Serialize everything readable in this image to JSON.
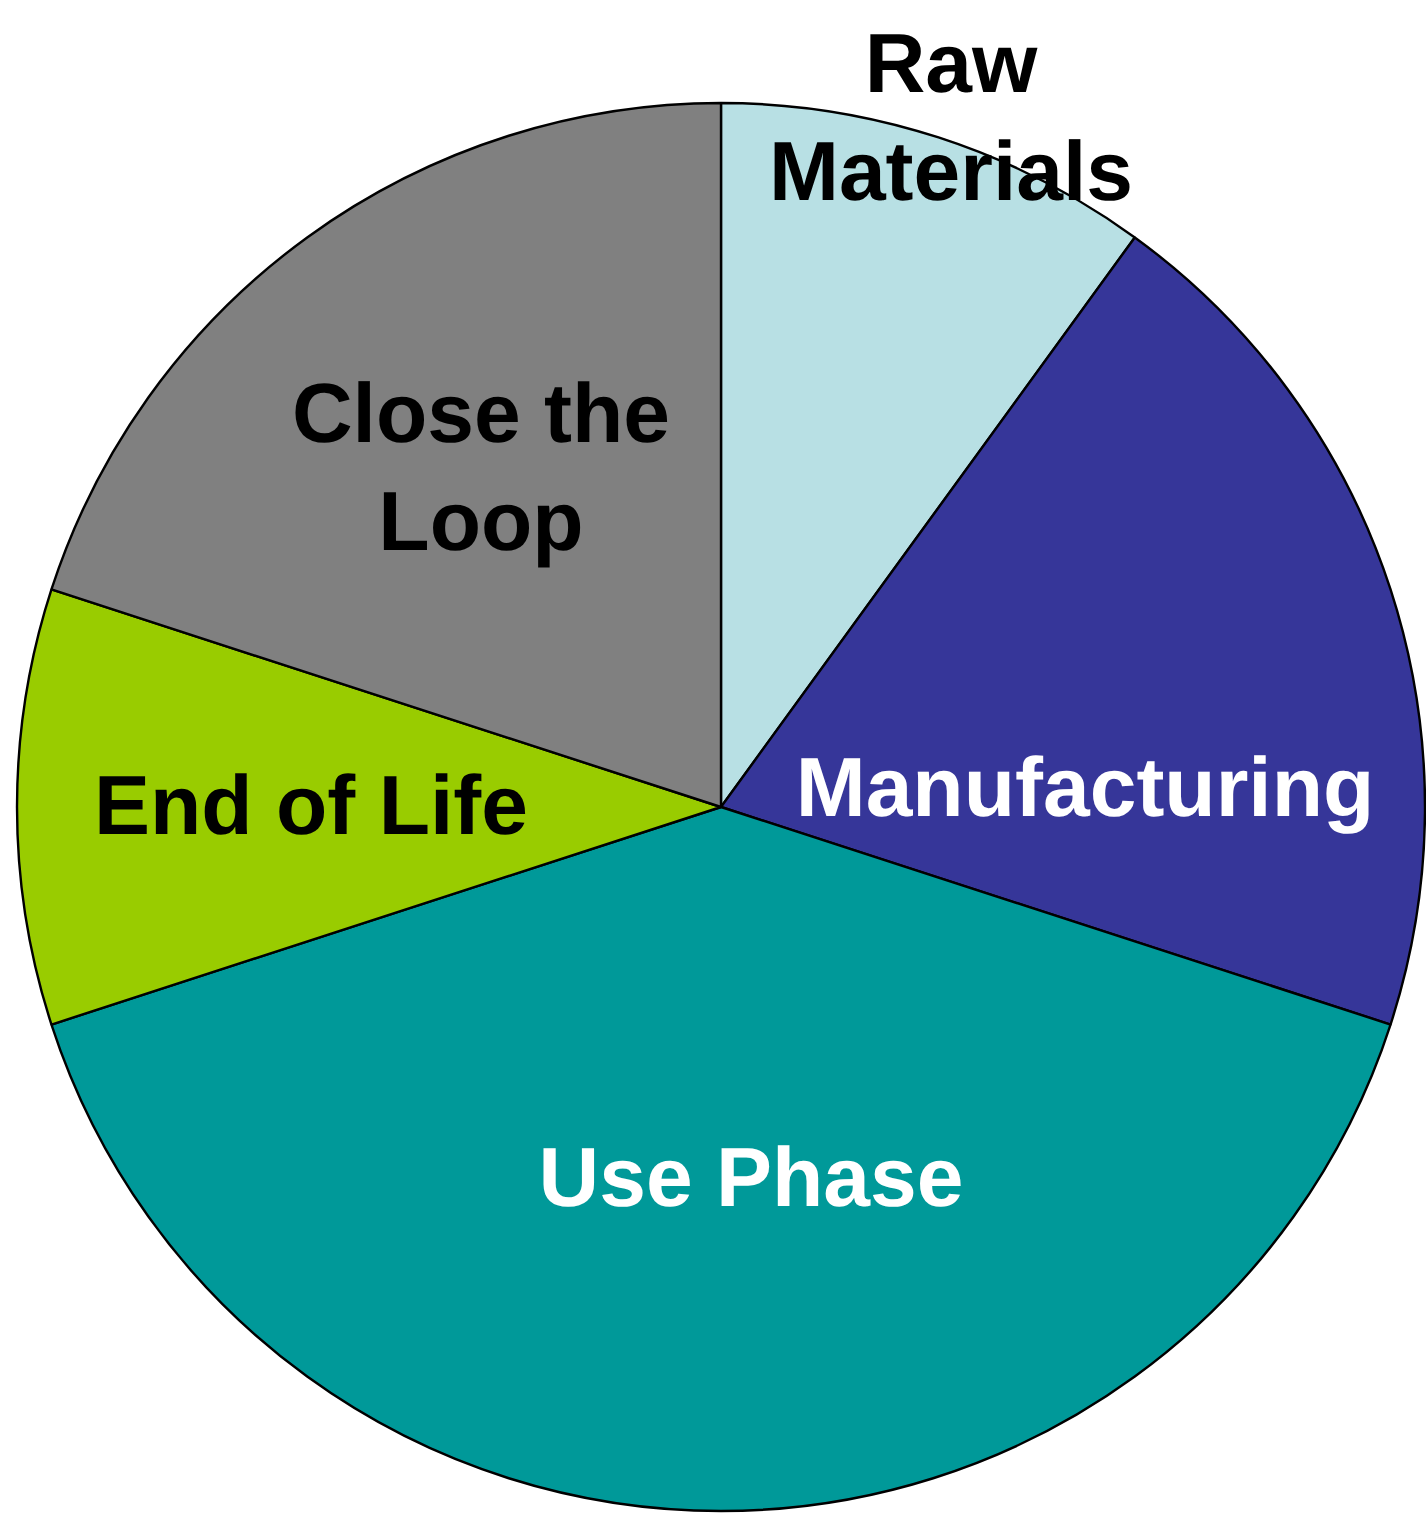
{
  "chart_data": {
    "type": "pie",
    "categories": [
      "Raw Materials",
      "Manufacturing",
      "Use Phase",
      "End of Life",
      "Close the Loop"
    ],
    "values": [
      10,
      20,
      40,
      10,
      20
    ],
    "colors": [
      "#b8e0e4",
      "#363699",
      "#009999",
      "#99cc00",
      "#808080"
    ]
  }
}
